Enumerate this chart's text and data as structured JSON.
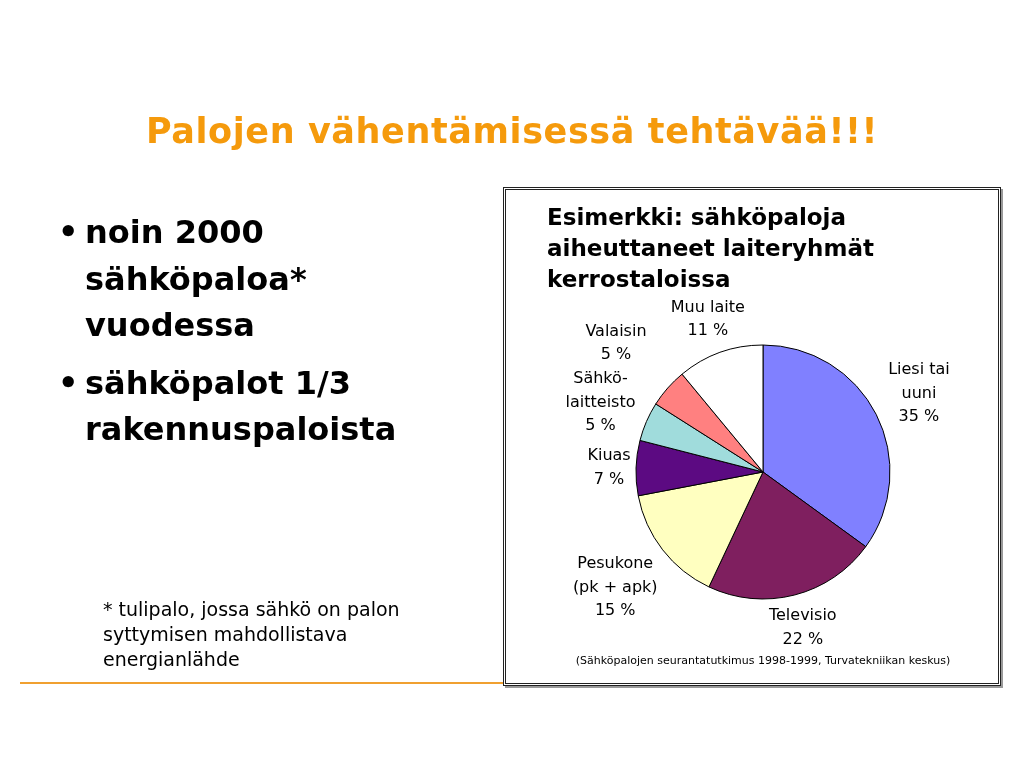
{
  "chart_data": [
    {
      "type": "other",
      "title": "Palojen vähentämisessä tehtävää!!!",
      "annotations": [
        "• noin 2000 sähköpaloa* vuodessa",
        "• sähköpalot 1/3 rakennuspaloista",
        "* tulipalo, jossa sähkö on palon syttymisen mahdollistava energianlähde"
      ]
    },
    {
      "type": "pie",
      "title": "Esimerkki: sähköpaloja aiheuttaneet laiteryhmät kerrostaloissa",
      "categories": [
        "Liesi tai uuni",
        "Televisio",
        "Pesukone (pk + apk)",
        "Kiuas",
        "Sähkö-laitteisto",
        "Valaisin",
        "Muu laite"
      ],
      "values": [
        35,
        22,
        15,
        7,
        5,
        5,
        11
      ],
      "value_labels": [
        "35 %",
        "22 %",
        "15 %",
        "7 %",
        "5 %",
        "5 %",
        "11 %"
      ],
      "colors": [
        "#8080ff",
        "#7f1f5f",
        "#ffffc0",
        "#5c0a82",
        "#a0dcdc",
        "#ff8080",
        "#ffffff"
      ],
      "annotations": [
        "(Sähköpalojen seurantatutkimus 1998-1999, Turvatekniikan keskus)"
      ]
    }
  ]
}
